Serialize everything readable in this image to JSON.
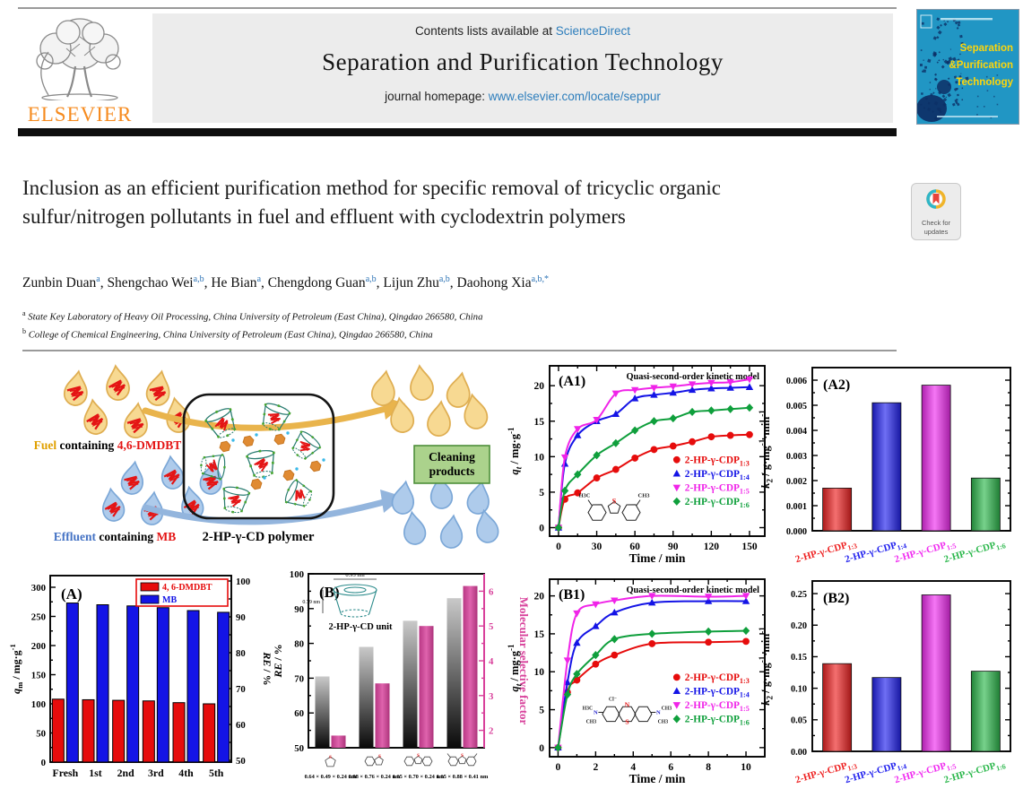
{
  "header": {
    "contents_prefix": "Contents lists available at ",
    "contents_link": "ScienceDirect",
    "journal_title": "Separation and Purification Technology",
    "homepage_prefix": "journal homepage: ",
    "homepage_url": "www.elsevier.com/locate/seppur",
    "publisher": "ELSEVIER",
    "cover_lines": [
      "Separation",
      "&Purification",
      "Technology"
    ]
  },
  "article": {
    "title": "Inclusion as an efficient purification method for specific removal of tricyclic organic sulfur/nitrogen pollutants in fuel and effluent with cyclodextrin polymers",
    "authors": [
      {
        "name": "Zunbin Duan",
        "sup": "a"
      },
      {
        "name": "Shengchao Wei",
        "sup": "a,b"
      },
      {
        "name": "He Bian",
        "sup": "a"
      },
      {
        "name": "Chengdong Guan",
        "sup": "a,b"
      },
      {
        "name": "Lijun Zhu",
        "sup": "a,b"
      },
      {
        "name": "Daohong Xia",
        "sup": "a,b,*"
      }
    ],
    "affiliations": [
      {
        "sup": "a",
        "text": "State Key Laboratory of Heavy Oil Processing, China University of Petroleum (East China), Qingdao 266580, China"
      },
      {
        "sup": "b",
        "text": "College of Chemical Engineering, China University of Petroleum (East China), Qingdao 266580, China"
      }
    ],
    "badge_line1": "Check for",
    "badge_line2": "updates"
  },
  "schematic": {
    "fuel_label_parts": [
      {
        "text": "Fuel",
        "color": "#e0a000"
      },
      {
        "text": " containing ",
        "color": "#000000"
      },
      {
        "text": "4,6-DMDBT",
        "color": "#e41414"
      }
    ],
    "effluent_label_parts": [
      {
        "text": "Effluent",
        "color": "#4472c4"
      },
      {
        "text": " containing ",
        "color": "#000000"
      },
      {
        "text": "MB",
        "color": "#e41414"
      }
    ],
    "polymer_label": "2-HP-γ-CD polymer",
    "cleaning_line1": "Cleaning",
    "cleaning_line2": "products"
  },
  "chart_data": [
    {
      "id": "A",
      "type": "groupbar",
      "panel": "(A)",
      "categories": [
        "Fresh",
        "1st",
        "2nd",
        "3rd",
        "4th",
        "5th"
      ],
      "series": [
        {
          "name": "4, 6-DMDBT",
          "color": "#e60c0c",
          "values": [
            108,
            107,
            106,
            105,
            102,
            100
          ]
        },
        {
          "name": "MB",
          "color": "#1414e6",
          "values": [
            273,
            270,
            268,
            265,
            260,
            257
          ]
        }
      ],
      "ylabel": [
        {
          "t": "q",
          "it": true
        },
        {
          "t": "m",
          "sub": true
        },
        {
          "t": " / mg·g"
        },
        {
          "t": "-1",
          "sup": true
        }
      ],
      "ylim": [
        0,
        320
      ],
      "yticks": [
        0,
        50,
        100,
        150,
        200,
        250,
        300
      ],
      "y2label": [
        {
          "t": "RE",
          "it": true
        },
        {
          "t": " / %"
        }
      ],
      "y2lim": [
        49.5,
        101.5
      ],
      "y2ticks": [
        50,
        60,
        70,
        80,
        90,
        100
      ],
      "legend_border": "#e60c0c"
    },
    {
      "id": "B",
      "type": "dualbar",
      "panel": "(B)",
      "categories": [
        {
          "mol": "thiophene",
          "size_label": "0.64 × 0.49 × 0.24 nm"
        },
        {
          "mol": "benzothiophene",
          "size_label": "0.98 × 0.76 × 0.24 nm"
        },
        {
          "mol": "dibenzothiophene",
          "size_label": "1.15 × 0.70 × 0.24 nm"
        },
        {
          "mol": "dmdbt",
          "size_label": "1.15 × 0.88 × 0.41 nm"
        }
      ],
      "left_values": [
        70.5,
        79,
        86.5,
        93
      ],
      "right_values": [
        1.85,
        3.35,
        5.0,
        6.15
      ],
      "ylabel": [
        {
          "t": "RE",
          "it": true
        },
        {
          "t": " / %"
        }
      ],
      "ylim": [
        50,
        100
      ],
      "yticks": [
        50,
        60,
        70,
        80,
        90,
        100
      ],
      "y2label": [
        {
          "t": "Molecular selective factor"
        }
      ],
      "y2lim": [
        1.5,
        6.5
      ],
      "y2ticks": [
        2,
        3,
        4,
        5,
        6
      ],
      "accent": "#d8419b",
      "inset": {
        "caption": "2-HP-γ-CD unit",
        "w_label": "0.95 nm",
        "h_label": "0.79 nm"
      }
    },
    {
      "id": "A1",
      "type": "kinetic",
      "panel": "(A1)",
      "title": "Quasi-second-order kinetic model",
      "xlabel": "Time / min",
      "ylabel": [
        {
          "t": "q",
          "it": true
        },
        {
          "t": "t",
          "sub": true,
          "it": true
        },
        {
          "t": " / mg·g"
        },
        {
          "t": "-1",
          "sup": true
        }
      ],
      "xlim": [
        -7,
        162
      ],
      "xticks": [
        0,
        30,
        60,
        90,
        120,
        150
      ],
      "ylim": [
        -1.2,
        22.8
      ],
      "yticks": [
        0,
        5,
        10,
        15,
        20
      ],
      "x": [
        0,
        5,
        15,
        30,
        45,
        60,
        75,
        90,
        105,
        120,
        135,
        150
      ],
      "series": [
        {
          "base": "2-HP-γ-CDP",
          "sub": "1:3",
          "color": "#e60c0c",
          "marker": "circle",
          "values": [
            0,
            4.0,
            4.9,
            7.0,
            8.2,
            9.8,
            11.0,
            11.5,
            12.1,
            12.8,
            13.0,
            13.1
          ]
        },
        {
          "base": "2-HP-γ-CDP",
          "sub": "1:4",
          "color": "#1414e6",
          "marker": "tri-up",
          "values": [
            0,
            9.0,
            13.0,
            15.0,
            16.0,
            18.2,
            18.7,
            19.0,
            19.4,
            19.6,
            19.7,
            19.8
          ]
        },
        {
          "base": "2-HP-γ-CDP",
          "sub": "1:5",
          "color": "#f024e8",
          "marker": "tri-down",
          "values": [
            0,
            9.9,
            13.9,
            15.2,
            18.9,
            19.4,
            19.7,
            19.9,
            20.2,
            20.4,
            20.5,
            20.9
          ]
        },
        {
          "base": "2-HP-γ-CDP",
          "sub": "1:6",
          "color": "#0f9f3c",
          "marker": "diamond",
          "values": [
            0,
            5.2,
            7.5,
            10.2,
            11.9,
            13.7,
            15.0,
            15.4,
            16.3,
            16.5,
            16.7,
            16.9
          ]
        }
      ],
      "mol": "dmdbt-large"
    },
    {
      "id": "A2",
      "type": "bars",
      "panel": "(A2)",
      "ylabel": [
        {
          "t": "k",
          "it": true
        },
        {
          "t": "2",
          "sub": true
        },
        {
          "t": " / g·mg"
        },
        {
          "t": "-1",
          "sup": true
        },
        {
          "t": "·min"
        },
        {
          "t": "-1",
          "sup": true
        }
      ],
      "ylim": [
        0,
        0.0065
      ],
      "yticks": [
        0,
        0.001,
        0.002,
        0.003,
        0.004,
        0.005,
        0.006
      ],
      "decimals": 3,
      "bars": [
        {
          "base": "2-HP-γ-CDP",
          "sub": "1:3",
          "color": "#ee2222",
          "value": 0.0017
        },
        {
          "base": "2-HP-γ-CDP",
          "sub": "1:4",
          "color": "#2222ee",
          "value": 0.0051
        },
        {
          "base": "2-HP-γ-CDP",
          "sub": "1:5",
          "color": "#f02cf0",
          "value": 0.0058
        },
        {
          "base": "2-HP-γ-CDP",
          "sub": "1:6",
          "color": "#2db84d",
          "value": 0.0021
        }
      ]
    },
    {
      "id": "B1",
      "type": "kinetic",
      "panel": "(B1)",
      "title": "Quasi-second-order kinetic model",
      "xlabel": "Time / min",
      "ylabel": [
        {
          "t": "q",
          "it": true
        },
        {
          "t": "t",
          "sub": true,
          "it": true
        },
        {
          "t": " / mg·g"
        },
        {
          "t": "-1",
          "sup": true
        }
      ],
      "xlim": [
        -0.45,
        11
      ],
      "xticks": [
        0,
        2,
        4,
        6,
        8,
        10
      ],
      "ylim": [
        -1.2,
        22.2
      ],
      "yticks": [
        0,
        5,
        10,
        15,
        20
      ],
      "x": [
        0,
        0.5,
        1,
        2,
        3,
        5,
        8,
        10
      ],
      "series": [
        {
          "base": "2-HP-γ-CDP",
          "sub": "1:3",
          "color": "#e60c0c",
          "marker": "circle",
          "values": [
            0,
            7.3,
            8.9,
            11.0,
            12.2,
            13.7,
            13.9,
            14.0
          ]
        },
        {
          "base": "2-HP-γ-CDP",
          "sub": "1:4",
          "color": "#1414e6",
          "marker": "tri-up",
          "values": [
            0,
            8.6,
            13.8,
            16.0,
            17.8,
            19.1,
            19.3,
            19.3
          ]
        },
        {
          "base": "2-HP-γ-CDP",
          "sub": "1:5",
          "color": "#f024e8",
          "marker": "tri-down",
          "values": [
            0,
            11.5,
            17.7,
            18.9,
            19.4,
            20.0,
            19.9,
            20.0
          ]
        },
        {
          "base": "2-HP-γ-CDP",
          "sub": "1:6",
          "color": "#0f9f3c",
          "marker": "diamond",
          "values": [
            0,
            7.0,
            9.7,
            12.2,
            14.3,
            15.0,
            15.3,
            15.4
          ]
        }
      ],
      "mol": "mb-large"
    },
    {
      "id": "B2",
      "type": "bars",
      "panel": "(B2)",
      "ylabel": [
        {
          "t": "k",
          "it": true
        },
        {
          "t": "2",
          "sub": true
        },
        {
          "t": " / g·mg"
        },
        {
          "t": "-1",
          "sup": true
        },
        {
          "t": "·min"
        },
        {
          "t": "-1",
          "sup": true
        }
      ],
      "ylim": [
        0,
        0.27
      ],
      "yticks": [
        0,
        0.05,
        0.1,
        0.15,
        0.2,
        0.25
      ],
      "decimals": 2,
      "bars": [
        {
          "base": "2-HP-γ-CDP",
          "sub": "1:3",
          "color": "#ee2222",
          "value": 0.139
        },
        {
          "base": "2-HP-γ-CDP",
          "sub": "1:4",
          "color": "#2222ee",
          "value": 0.117
        },
        {
          "base": "2-HP-γ-CDP",
          "sub": "1:5",
          "color": "#f02cf0",
          "value": 0.248
        },
        {
          "base": "2-HP-γ-CDP",
          "sub": "1:6",
          "color": "#2db84d",
          "value": 0.127
        }
      ]
    }
  ]
}
